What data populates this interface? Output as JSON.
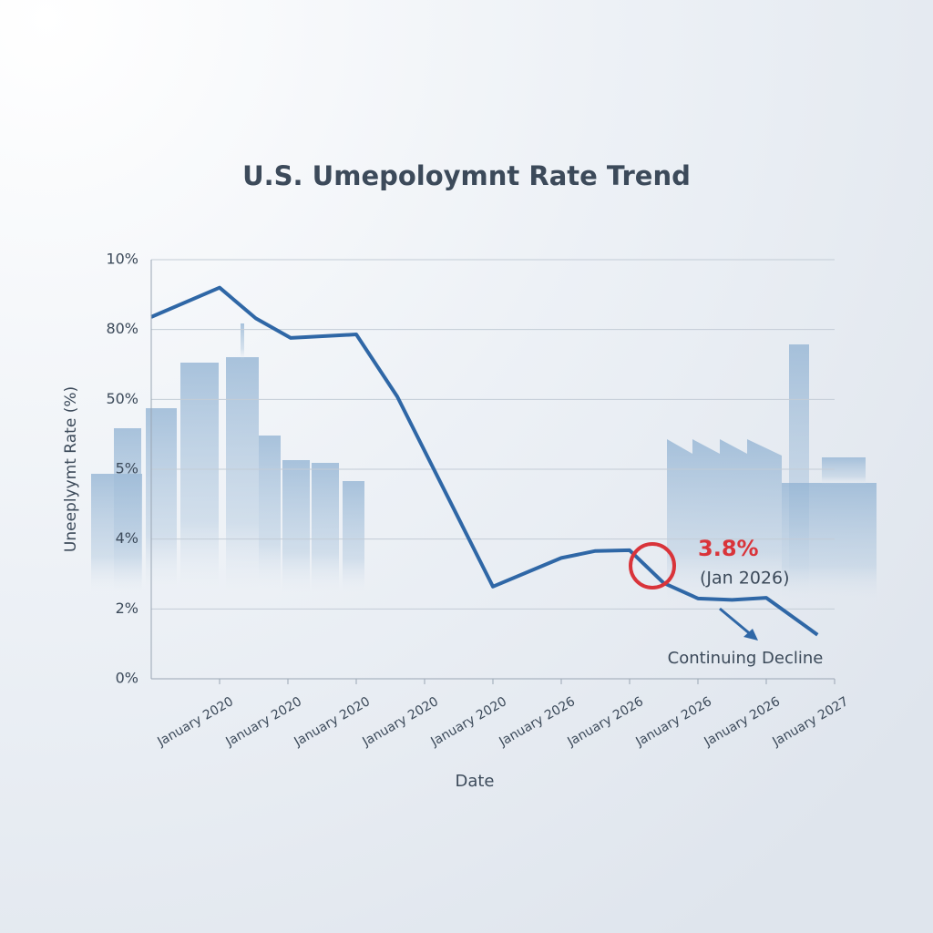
{
  "chart_data": {
    "type": "line",
    "title": "U.S. Umepoloymnt Rate Trend",
    "x_label": "Date",
    "y_label": "Uneeplyymt Rate (%)",
    "xlim": [
      0,
      10
    ],
    "xticks": [
      {
        "value": 1,
        "label": "January 2020"
      },
      {
        "value": 2,
        "label": "January 2020"
      },
      {
        "value": 3,
        "label": "January 2020"
      },
      {
        "value": 4,
        "label": "January 2020"
      },
      {
        "value": 5,
        "label": "January 2020"
      },
      {
        "value": 6,
        "label": "January 2026"
      },
      {
        "value": 7,
        "label": "January 2026"
      },
      {
        "value": 8,
        "label": "January 2026"
      },
      {
        "value": 9,
        "label": "January 2026"
      },
      {
        "value": 10,
        "label": "January 2027"
      }
    ],
    "ylim": [
      0,
      6
    ],
    "yticks": [
      {
        "value": 0,
        "label": "0%"
      },
      {
        "value": 1,
        "label": "2%"
      },
      {
        "value": 2,
        "label": "4%"
      },
      {
        "value": 3,
        "label": "5%"
      },
      {
        "value": 4,
        "label": "50%"
      },
      {
        "value": 5,
        "label": "80%"
      },
      {
        "value": 6,
        "label": "10%"
      }
    ],
    "grid": true,
    "series": [
      {
        "color": "#2f67a6",
        "x": [
          0,
          1,
          1.53,
          2.04,
          3,
          3.6,
          5,
          6,
          6.5,
          7,
          7.5,
          8,
          8.5,
          9,
          9.75
        ],
        "values": [
          5.18,
          5.6,
          5.16,
          4.88,
          4.93,
          4.04,
          1.32,
          1.73,
          1.83,
          1.84,
          1.37,
          1.15,
          1.13,
          1.16,
          0.63
        ]
      }
    ],
    "annotations": {
      "value": "3.8%",
      "date": "(Jan 2026)",
      "trend": "Continuing Decline"
    }
  }
}
